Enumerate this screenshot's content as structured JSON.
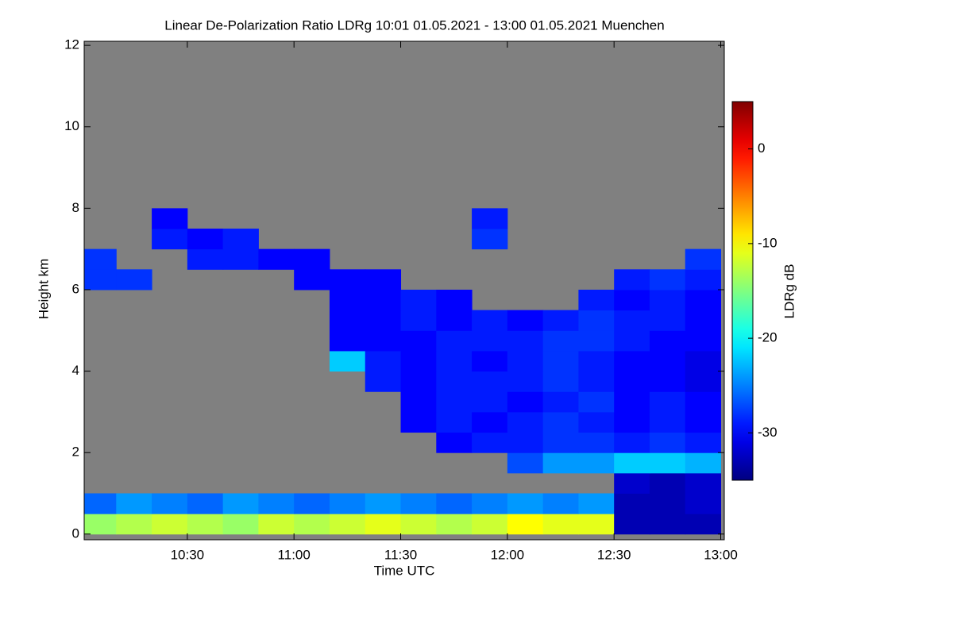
{
  "chart_data": {
    "type": "heatmap",
    "title": "Linear De-Polarization Ratio LDRg   10:01 01.05.2021 - 13:00 01.05.2021 Muenchen",
    "x_label": "Time UTC",
    "y_label": "Height km",
    "colorbar_label": "LDRg dB",
    "x": [
      605,
      615,
      625,
      635,
      645,
      655,
      665,
      675,
      685,
      695,
      705,
      715,
      725,
      735,
      745,
      755,
      765,
      775
    ],
    "y": [
      0.25,
      0.75,
      1.25,
      1.75,
      2.25,
      2.75,
      3.25,
      3.75,
      4.25,
      4.75,
      5.25,
      5.75,
      6.25,
      6.75,
      7.25,
      7.75,
      8.25
    ],
    "z": [
      [
        -14,
        -13,
        -12,
        -13,
        -14,
        -12,
        -13,
        -12,
        -11,
        -12,
        -13,
        -12,
        -10,
        -11,
        -11,
        -33,
        -33,
        -33
      ],
      [
        -26,
        -24,
        -25,
        -26,
        -24,
        -25,
        -26,
        -25,
        -24,
        -25,
        -26,
        -25,
        -24,
        -25,
        -24,
        -33,
        -33,
        -32
      ],
      [
        null,
        null,
        null,
        null,
        null,
        null,
        null,
        null,
        null,
        null,
        null,
        null,
        null,
        null,
        null,
        -32,
        -33,
        -32
      ],
      [
        null,
        null,
        null,
        null,
        null,
        null,
        null,
        null,
        null,
        null,
        null,
        null,
        -27,
        -24,
        -24,
        -22,
        -22,
        -23
      ],
      [
        null,
        null,
        null,
        null,
        null,
        null,
        null,
        null,
        null,
        null,
        -30,
        -29,
        -29,
        -28,
        -28,
        -29,
        -28,
        -29
      ],
      [
        null,
        null,
        null,
        null,
        null,
        null,
        null,
        null,
        null,
        -30,
        -29,
        -30,
        -29,
        -28,
        -29,
        -30,
        -29,
        -30
      ],
      [
        null,
        null,
        null,
        null,
        null,
        null,
        null,
        null,
        null,
        -30,
        -29,
        -29,
        -30,
        -29,
        -28,
        -30,
        -29,
        -30
      ],
      [
        null,
        null,
        null,
        null,
        null,
        null,
        null,
        null,
        -29,
        -30,
        -29,
        -29,
        -29,
        -28,
        -29,
        -30,
        -30,
        -31
      ],
      [
        null,
        null,
        null,
        null,
        null,
        null,
        null,
        -22,
        -29,
        -30,
        -29,
        -30,
        -29,
        -28,
        -29,
        -30,
        -30,
        -31
      ],
      [
        null,
        null,
        null,
        null,
        null,
        null,
        null,
        -30,
        -30,
        -30,
        -29,
        -29,
        -29,
        -28,
        -28,
        -29,
        -30,
        -30
      ],
      [
        null,
        null,
        null,
        null,
        null,
        null,
        null,
        -30,
        -30,
        -29,
        -30,
        -29,
        -30,
        -29,
        -28,
        -29,
        -29,
        -30
      ],
      [
        null,
        null,
        null,
        null,
        null,
        null,
        null,
        -30,
        -30,
        -29,
        -30,
        null,
        null,
        null,
        -29,
        -30,
        -29,
        -30
      ],
      [
        -28,
        -28,
        null,
        null,
        null,
        null,
        -30,
        -30,
        -30,
        null,
        null,
        null,
        null,
        null,
        null,
        -29,
        -28,
        -29
      ],
      [
        -28,
        null,
        null,
        -29,
        -29,
        -30,
        -30,
        null,
        null,
        null,
        null,
        null,
        null,
        null,
        null,
        null,
        null,
        -28
      ],
      [
        null,
        null,
        -29,
        -30,
        -29,
        null,
        null,
        null,
        null,
        null,
        null,
        -28,
        null,
        null,
        null,
        null,
        null,
        null
      ],
      [
        null,
        null,
        -30,
        null,
        null,
        null,
        null,
        null,
        null,
        null,
        null,
        -29,
        null,
        null,
        null,
        null,
        null,
        null
      ],
      [
        null,
        null,
        null,
        null,
        null,
        null,
        null,
        null,
        null,
        null,
        null,
        null,
        null,
        null,
        null,
        null,
        null,
        null
      ]
    ],
    "xlim": [
      601,
      781
    ],
    "ylim": [
      -0.14,
      12.1
    ],
    "xticks": [
      {
        "value": 630,
        "label": "10:30"
      },
      {
        "value": 660,
        "label": "11:00"
      },
      {
        "value": 690,
        "label": "11:30"
      },
      {
        "value": 720,
        "label": "12:00"
      },
      {
        "value": 750,
        "label": "12:30"
      },
      {
        "value": 780,
        "label": "13:00"
      }
    ],
    "yticks": [
      0,
      2,
      4,
      6,
      8,
      10,
      12
    ],
    "zlim": [
      -35,
      5
    ],
    "zticks": [
      0,
      -10,
      -20,
      -30
    ],
    "colormap": "jet",
    "background": "#808080"
  }
}
